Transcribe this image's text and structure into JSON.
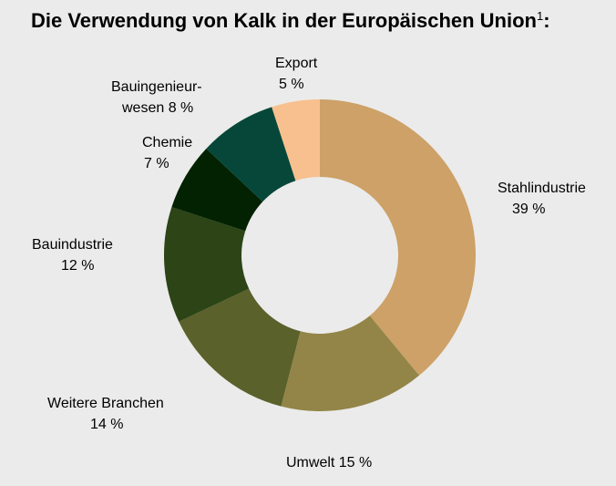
{
  "chart_data": {
    "type": "pie",
    "donut": true,
    "title": "Die Verwendung von Kalk in der Europäischen Union",
    "title_superscript": "1",
    "title_suffix": ":",
    "unit": "%",
    "start": "12 o'clock",
    "direction": "clockwise",
    "slices": [
      {
        "label": "Stahlindustrie",
        "value": 39,
        "display": "39 %",
        "color": "#cda167"
      },
      {
        "label": "Umwelt",
        "value": 15,
        "display": "Umwelt 15 %",
        "color": "#938548"
      },
      {
        "label": "Weitere Branchen",
        "value": 14,
        "display": "14 %",
        "color": "#5a612b"
      },
      {
        "label": "Bauindustrie",
        "value": 12,
        "display": "12 %",
        "color": "#2c4416"
      },
      {
        "label": "Chemie",
        "value": 7,
        "display": "7 %",
        "color": "#022202"
      },
      {
        "label": "Bauingenieur-",
        "label2": "wesen 8 %",
        "value": 8,
        "color": "#06473a"
      },
      {
        "label": "Export",
        "value": 5,
        "display": "5 %",
        "color": "#f8c08e"
      }
    ]
  }
}
